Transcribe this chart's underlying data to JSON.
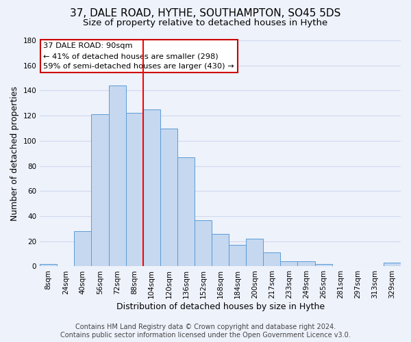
{
  "title": "37, DALE ROAD, HYTHE, SOUTHAMPTON, SO45 5DS",
  "subtitle": "Size of property relative to detached houses in Hythe",
  "xlabel": "Distribution of detached houses by size in Hythe",
  "ylabel": "Number of detached properties",
  "categories": [
    "8sqm",
    "24sqm",
    "40sqm",
    "56sqm",
    "72sqm",
    "88sqm",
    "104sqm",
    "120sqm",
    "136sqm",
    "152sqm",
    "168sqm",
    "184sqm",
    "200sqm",
    "217sqm",
    "233sqm",
    "249sqm",
    "265sqm",
    "281sqm",
    "297sqm",
    "313sqm",
    "329sqm"
  ],
  "values": [
    2,
    0,
    28,
    121,
    144,
    122,
    125,
    110,
    87,
    37,
    26,
    17,
    22,
    11,
    4,
    4,
    2,
    0,
    0,
    0,
    3
  ],
  "bar_color": "#c5d8f0",
  "bar_edge_color": "#5b9bd5",
  "ylim": [
    0,
    180
  ],
  "yticks": [
    0,
    20,
    40,
    60,
    80,
    100,
    120,
    140,
    160,
    180
  ],
  "vline_position": 5.5,
  "property_label": "37 DALE ROAD: 90sqm",
  "annotation_line1": "← 41% of detached houses are smaller (298)",
  "annotation_line2": "59% of semi-detached houses are larger (430) →",
  "annotation_box_color": "#ffffff",
  "annotation_box_edge": "#cc0000",
  "footer_line1": "Contains HM Land Registry data © Crown copyright and database right 2024.",
  "footer_line2": "Contains public sector information licensed under the Open Government Licence v3.0.",
  "background_color": "#eef2fb",
  "grid_color": "#d0d8ee",
  "title_fontsize": 11,
  "subtitle_fontsize": 9.5,
  "axis_label_fontsize": 9,
  "tick_fontsize": 7.5,
  "footer_fontsize": 7
}
